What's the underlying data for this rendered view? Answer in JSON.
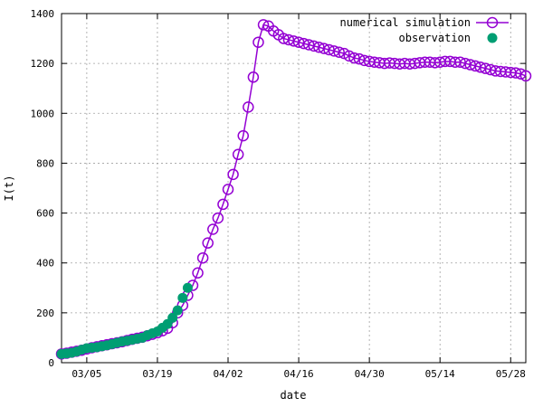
{
  "chart_data": {
    "type": "scatter",
    "xlabel": "date",
    "ylabel": "I(t)",
    "x_ticks": [
      "03/05",
      "03/19",
      "04/02",
      "04/16",
      "04/30",
      "05/14",
      "05/28"
    ],
    "x_range": [
      "2020-02-29",
      "2020-05-31"
    ],
    "ylim": [
      0,
      1400
    ],
    "y_ticks": [
      "0",
      "200",
      "400",
      "600",
      "800",
      "1000",
      "1200",
      "1400"
    ],
    "grid": true,
    "legend_position": "top-right",
    "colors": {
      "simulation": "#9400d3",
      "observation": "#009e73"
    },
    "series": [
      {
        "name": "numerical simulation",
        "style": "line+open-circle",
        "points": [
          [
            "2020-02-29",
            35
          ],
          [
            "2020-03-01",
            38
          ],
          [
            "2020-03-02",
            42
          ],
          [
            "2020-03-03",
            46
          ],
          [
            "2020-03-04",
            50
          ],
          [
            "2020-03-05",
            55
          ],
          [
            "2020-03-06",
            60
          ],
          [
            "2020-03-07",
            64
          ],
          [
            "2020-03-08",
            68
          ],
          [
            "2020-03-09",
            72
          ],
          [
            "2020-03-10",
            76
          ],
          [
            "2020-03-11",
            80
          ],
          [
            "2020-03-12",
            84
          ],
          [
            "2020-03-13",
            89
          ],
          [
            "2020-03-14",
            94
          ],
          [
            "2020-03-15",
            98
          ],
          [
            "2020-03-16",
            102
          ],
          [
            "2020-03-17",
            108
          ],
          [
            "2020-03-18",
            114
          ],
          [
            "2020-03-19",
            120
          ],
          [
            "2020-03-20",
            128
          ],
          [
            "2020-03-21",
            138
          ],
          [
            "2020-03-22",
            160
          ],
          [
            "2020-03-23",
            200
          ],
          [
            "2020-03-24",
            230
          ],
          [
            "2020-03-25",
            270
          ],
          [
            "2020-03-26",
            310
          ],
          [
            "2020-03-27",
            360
          ],
          [
            "2020-03-28",
            420
          ],
          [
            "2020-03-29",
            480
          ],
          [
            "2020-03-30",
            535
          ],
          [
            "2020-03-31",
            580
          ],
          [
            "2020-04-01",
            635
          ],
          [
            "2020-04-02",
            695
          ],
          [
            "2020-04-03",
            755
          ],
          [
            "2020-04-04",
            835
          ],
          [
            "2020-04-05",
            910
          ],
          [
            "2020-04-06",
            1025
          ],
          [
            "2020-04-07",
            1145
          ],
          [
            "2020-04-08",
            1285
          ],
          [
            "2020-04-09",
            1355
          ],
          [
            "2020-04-10",
            1350
          ],
          [
            "2020-04-11",
            1330
          ],
          [
            "2020-04-12",
            1315
          ],
          [
            "2020-04-13",
            1300
          ],
          [
            "2020-04-14",
            1295
          ],
          [
            "2020-04-15",
            1290
          ],
          [
            "2020-04-16",
            1285
          ],
          [
            "2020-04-17",
            1280
          ],
          [
            "2020-04-18",
            1275
          ],
          [
            "2020-04-19",
            1270
          ],
          [
            "2020-04-20",
            1265
          ],
          [
            "2020-04-21",
            1260
          ],
          [
            "2020-04-22",
            1255
          ],
          [
            "2020-04-23",
            1250
          ],
          [
            "2020-04-24",
            1245
          ],
          [
            "2020-04-25",
            1240
          ],
          [
            "2020-04-26",
            1230
          ],
          [
            "2020-04-27",
            1222
          ],
          [
            "2020-04-28",
            1218
          ],
          [
            "2020-04-29",
            1212
          ],
          [
            "2020-04-30",
            1208
          ],
          [
            "2020-05-01",
            1205
          ],
          [
            "2020-05-02",
            1203
          ],
          [
            "2020-05-03",
            1200
          ],
          [
            "2020-05-04",
            1202
          ],
          [
            "2020-05-05",
            1200
          ],
          [
            "2020-05-06",
            1198
          ],
          [
            "2020-05-07",
            1200
          ],
          [
            "2020-05-08",
            1198
          ],
          [
            "2020-05-09",
            1200
          ],
          [
            "2020-05-10",
            1203
          ],
          [
            "2020-05-11",
            1205
          ],
          [
            "2020-05-12",
            1205
          ],
          [
            "2020-05-13",
            1203
          ],
          [
            "2020-05-14",
            1205
          ],
          [
            "2020-05-15",
            1208
          ],
          [
            "2020-05-16",
            1208
          ],
          [
            "2020-05-17",
            1205
          ],
          [
            "2020-05-18",
            1205
          ],
          [
            "2020-05-19",
            1200
          ],
          [
            "2020-05-20",
            1195
          ],
          [
            "2020-05-21",
            1190
          ],
          [
            "2020-05-22",
            1185
          ],
          [
            "2020-05-23",
            1180
          ],
          [
            "2020-05-24",
            1175
          ],
          [
            "2020-05-25",
            1170
          ],
          [
            "2020-05-26",
            1168
          ],
          [
            "2020-05-27",
            1166
          ],
          [
            "2020-05-28",
            1164
          ],
          [
            "2020-05-29",
            1162
          ],
          [
            "2020-05-30",
            1158
          ],
          [
            "2020-05-31",
            1150
          ]
        ]
      },
      {
        "name": "observation",
        "style": "filled-circle",
        "points": [
          [
            "2020-02-29",
            35
          ],
          [
            "2020-03-01",
            37
          ],
          [
            "2020-03-02",
            40
          ],
          [
            "2020-03-03",
            45
          ],
          [
            "2020-03-04",
            52
          ],
          [
            "2020-03-05",
            58
          ],
          [
            "2020-03-06",
            60
          ],
          [
            "2020-03-07",
            62
          ],
          [
            "2020-03-08",
            66
          ],
          [
            "2020-03-09",
            70
          ],
          [
            "2020-03-10",
            75
          ],
          [
            "2020-03-11",
            80
          ],
          [
            "2020-03-12",
            85
          ],
          [
            "2020-03-13",
            88
          ],
          [
            "2020-03-14",
            92
          ],
          [
            "2020-03-15",
            96
          ],
          [
            "2020-03-16",
            100
          ],
          [
            "2020-03-17",
            110
          ],
          [
            "2020-03-18",
            118
          ],
          [
            "2020-03-19",
            125
          ],
          [
            "2020-03-20",
            140
          ],
          [
            "2020-03-21",
            155
          ],
          [
            "2020-03-22",
            180
          ],
          [
            "2020-03-23",
            210
          ],
          [
            "2020-03-24",
            260
          ],
          [
            "2020-03-25",
            300
          ]
        ]
      }
    ]
  }
}
